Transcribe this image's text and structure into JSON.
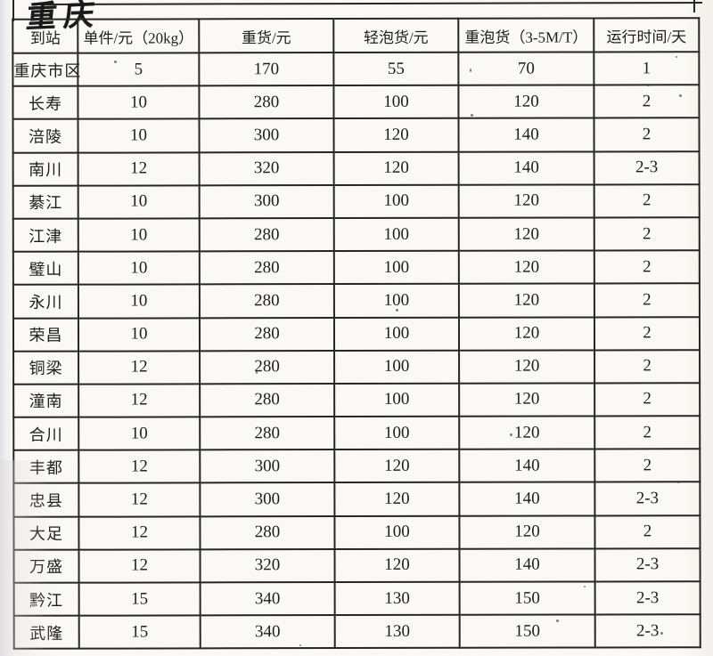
{
  "page": {
    "handwritten_note": "重庆",
    "paper_color": "#faf9f5",
    "ink_color": "#1d1d1d",
    "line_color": "#262626"
  },
  "table": {
    "columns": [
      "到站",
      "单件/元（20kg）",
      "重货/元",
      "轻泡货/元",
      "重泡货（3-5M/T）",
      "运行时间/天"
    ],
    "rows": [
      [
        "重庆市区",
        "5",
        "170",
        "55",
        "70",
        "1"
      ],
      [
        "长寿",
        "10",
        "280",
        "100",
        "120",
        "2"
      ],
      [
        "涪陵",
        "10",
        "300",
        "120",
        "140",
        "2"
      ],
      [
        "南川",
        "12",
        "320",
        "120",
        "140",
        "2-3"
      ],
      [
        "綦江",
        "10",
        "300",
        "100",
        "120",
        "2"
      ],
      [
        "江津",
        "10",
        "280",
        "100",
        "120",
        "2"
      ],
      [
        "璧山",
        "10",
        "280",
        "100",
        "120",
        "2"
      ],
      [
        "永川",
        "10",
        "280",
        "100",
        "120",
        "2"
      ],
      [
        "荣昌",
        "10",
        "280",
        "100",
        "120",
        "2"
      ],
      [
        "铜梁",
        "12",
        "280",
        "100",
        "120",
        "2"
      ],
      [
        "潼南",
        "12",
        "280",
        "100",
        "120",
        "2"
      ],
      [
        "合川",
        "10",
        "280",
        "100",
        "120",
        "2"
      ],
      [
        "丰都",
        "12",
        "300",
        "120",
        "140",
        "2"
      ],
      [
        "忠县",
        "12",
        "300",
        "120",
        "140",
        "2-3"
      ],
      [
        "大足",
        "12",
        "280",
        "100",
        "120",
        "2"
      ],
      [
        "万盛",
        "12",
        "320",
        "120",
        "140",
        "2-3"
      ],
      [
        "黔江",
        "15",
        "340",
        "130",
        "150",
        "2-3"
      ],
      [
        "武隆",
        "15",
        "340",
        "130",
        "150",
        "2-3"
      ]
    ]
  }
}
